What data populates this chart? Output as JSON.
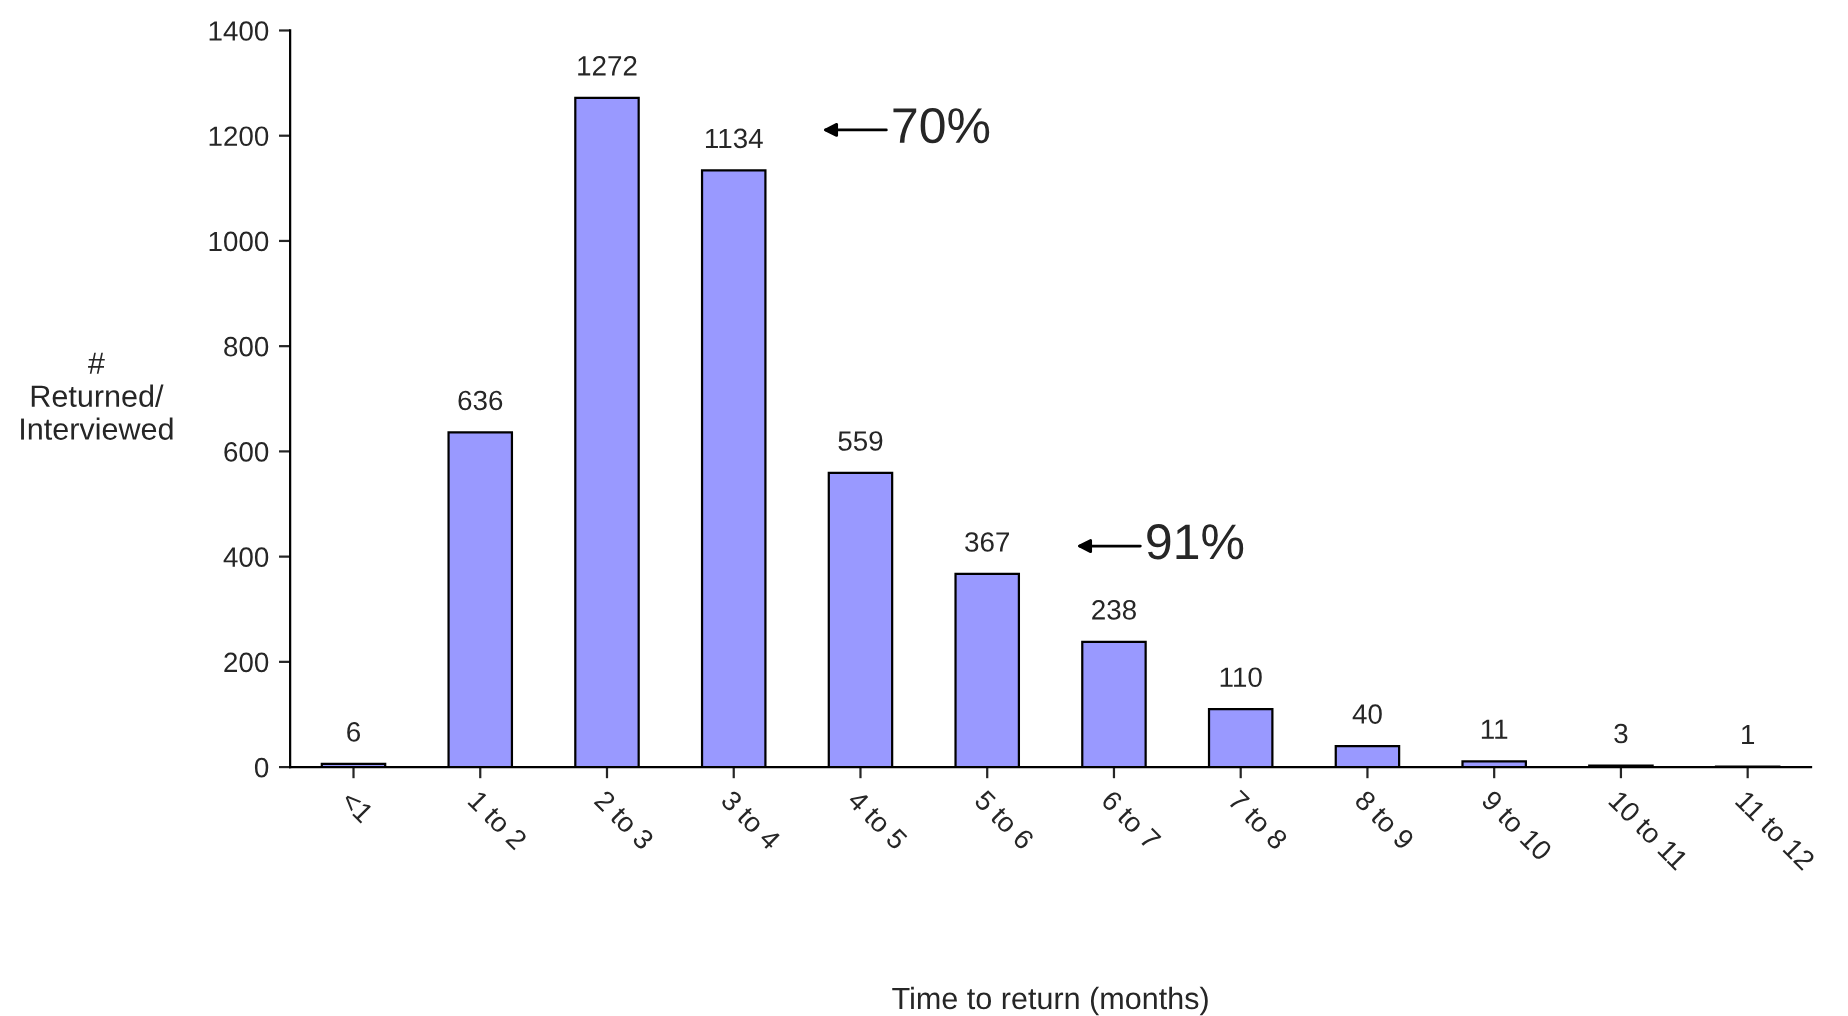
{
  "chart_data": {
    "type": "bar",
    "categories": [
      "<1",
      "1 to 2",
      "2 to 3",
      "3 to 4",
      "4 to 5",
      "5 to 6",
      "6 to 7",
      "7 to 8",
      "8 to 9",
      "9 to 10",
      "10 to 11",
      "11 to 12"
    ],
    "values": [
      6,
      636,
      1272,
      1134,
      559,
      367,
      238,
      110,
      40,
      11,
      3,
      1
    ],
    "color": "#9999ff",
    "xlabel": "Time to return (months)",
    "ylabel": "#\nReturned/\nInterviewed",
    "ylim": [
      0,
      1400
    ],
    "yticks": [
      0,
      200,
      400,
      600,
      800,
      1000,
      1200,
      1400
    ],
    "data_labels": true,
    "grid": false,
    "annotations": [
      "70%",
      "91%"
    ]
  }
}
